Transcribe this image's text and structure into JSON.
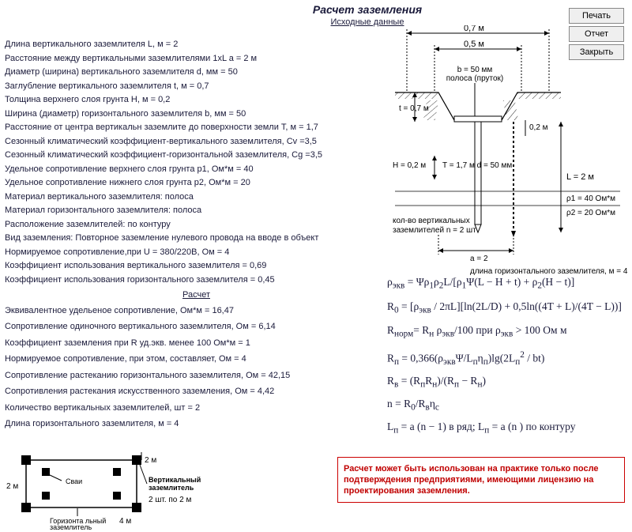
{
  "title": "Расчет заземления",
  "subtitle": "Исходные данные",
  "buttons": {
    "print": "Печать",
    "report": "Отчет",
    "close": "Закрыть"
  },
  "inputs": [
    "Длина вертикального заземлителя L, м = 2",
    "Расстояние между вертикальными заземлителями 1xL a = 2 м",
    "Диаметр (ширина) вертикального заземлителя d, мм = 50",
    "Заглубление вертикального заземлителя t, м = 0,7",
    "Толщина верхнего слоя грунта H, м = 0,2",
    "Ширина (диаметр) горизонтального заземлителя b, мм = 50",
    "Расстояние от центра вертикальн заземлите до поверхности земли T, м = 1,7",
    "Сезонный климатический коэффициент-вертикального заземлителя, Cv =3,5",
    "Сезонный климатический коэффициент-горизонтальной заземлителя, Cg =3,5",
    "Удельное сопротивление верхнего слоя грунта  p1, Ом*м = 40",
    "Удельное сопротивление нижнего слоя грунта  p2, Ом*м = 20",
    "Материал вертикального заземлителя: полоса",
    "Материал горизонтального заземлителя: полоса",
    "Расположение заземлителей: по контуру",
    "Вид заземления:  Повторное заземление нулевого провода на вводе в объект",
    "Нормируемое сопротивление,при U = 380/220В, Ом = 4",
    "Коэффициент использования вертикального заземлителя = 0,69",
    "Коэффициент использования горизонтального заземлителя = 0,45"
  ],
  "calc_title": "Расчет",
  "calcs": [
    "Эквивалентное удельеное сопротивление, Ом*м = 16,47",
    "Сопротивление одиночного вертикального заземлителя, Ом = 6,14",
    "Коэффициент заземления при R уд.экв. менее 100 Ом*м = 1",
    "Нормируемое сопротивление, при этом, составляет, Ом = 4",
    "Сопротивление растеканию горизонтального заземлителя, Ом = 42,15",
    "Сопротивления растекания  искусственного заземления, Ом = 4,42",
    "Количество вертикальных заземлителей, шт = 2",
    "Длина горизонтального заземлителя, м = 4"
  ],
  "calc_spacing": [
    "0",
    "3px",
    "3px",
    "3px",
    "3px",
    "3px",
    "3px",
    "3px"
  ],
  "diagram": {
    "top_dim": "0,7 м",
    "mid_dim": "0,5 м",
    "b_label": "b = 50 мм\nполоса (пруток)",
    "t_label": "t = 0,7 м",
    "h_label": "H = 0,2 м",
    "T_label": "T = 1,7 м",
    "d_label": "d = 50 мм",
    "depth_label": "0,2 м",
    "L_label": "L = 2 м",
    "p1_label": "ρ1 = 40 Ом*м",
    "p2_label": "ρ2 = 20 Ом*м",
    "n_label": "кол-во вертикальных\nзаземлителей n = 2 шт",
    "a_label": "a = 2",
    "hor_len_label": "длина горизонтального заземлителя, м = 4"
  },
  "formulas": [
    "ρ<sub>экв</sub> = Ψρ<sub>1</sub>ρ<sub>2</sub>L/[ρ<sub>1</sub>Ψ(L − H + t) + ρ<sub>2</sub>(H − t)]",
    "R<sub>0</sub> = [ρ<sub>экв</sub> / 2πL][ln(2L/D) + 0,5ln((4T + L)/(4T − L))]",
    "R<sub>норм</sub>= R<sub>н</sub> ρ<sub>экв</sub>/100 при  ρ<sub>экв</sub> &gt; 100 Ом м",
    "R<sub>п</sub> = 0,366(ρ<sub>экв</sub>Ψ/L<sub>п</sub>η<sub>п</sub>)lg(2L<sub>п</sub><sup>2</sup> / bt)",
    "R<sub>в</sub> = (R<sub>п</sub>R<sub>н</sub>)/(R<sub>п</sub> − R<sub>н</sub>)",
    "n = R<sub>0</sub>/R<sub>в</sub>η<sub>с</sub>",
    "L<sub>п</sub> = a (n − 1)  в ряд;  L<sub>п</sub> = a (n ) по контуру"
  ],
  "disclaimer": "Расчет может быть использован на практике только после подтверждения предприятиями, имеющими лицензию на проектирования заземления.",
  "bottom_diagram": {
    "label_top": "2 м",
    "label_left": "2 м",
    "label_svai": "Сваи",
    "label_vert": "Вертикальный\nзаземлитель",
    "label_count": "2 шт. по 2 м",
    "label_hor": "Горизонта льный\nзаземлитель",
    "label_len": "4 м"
  }
}
